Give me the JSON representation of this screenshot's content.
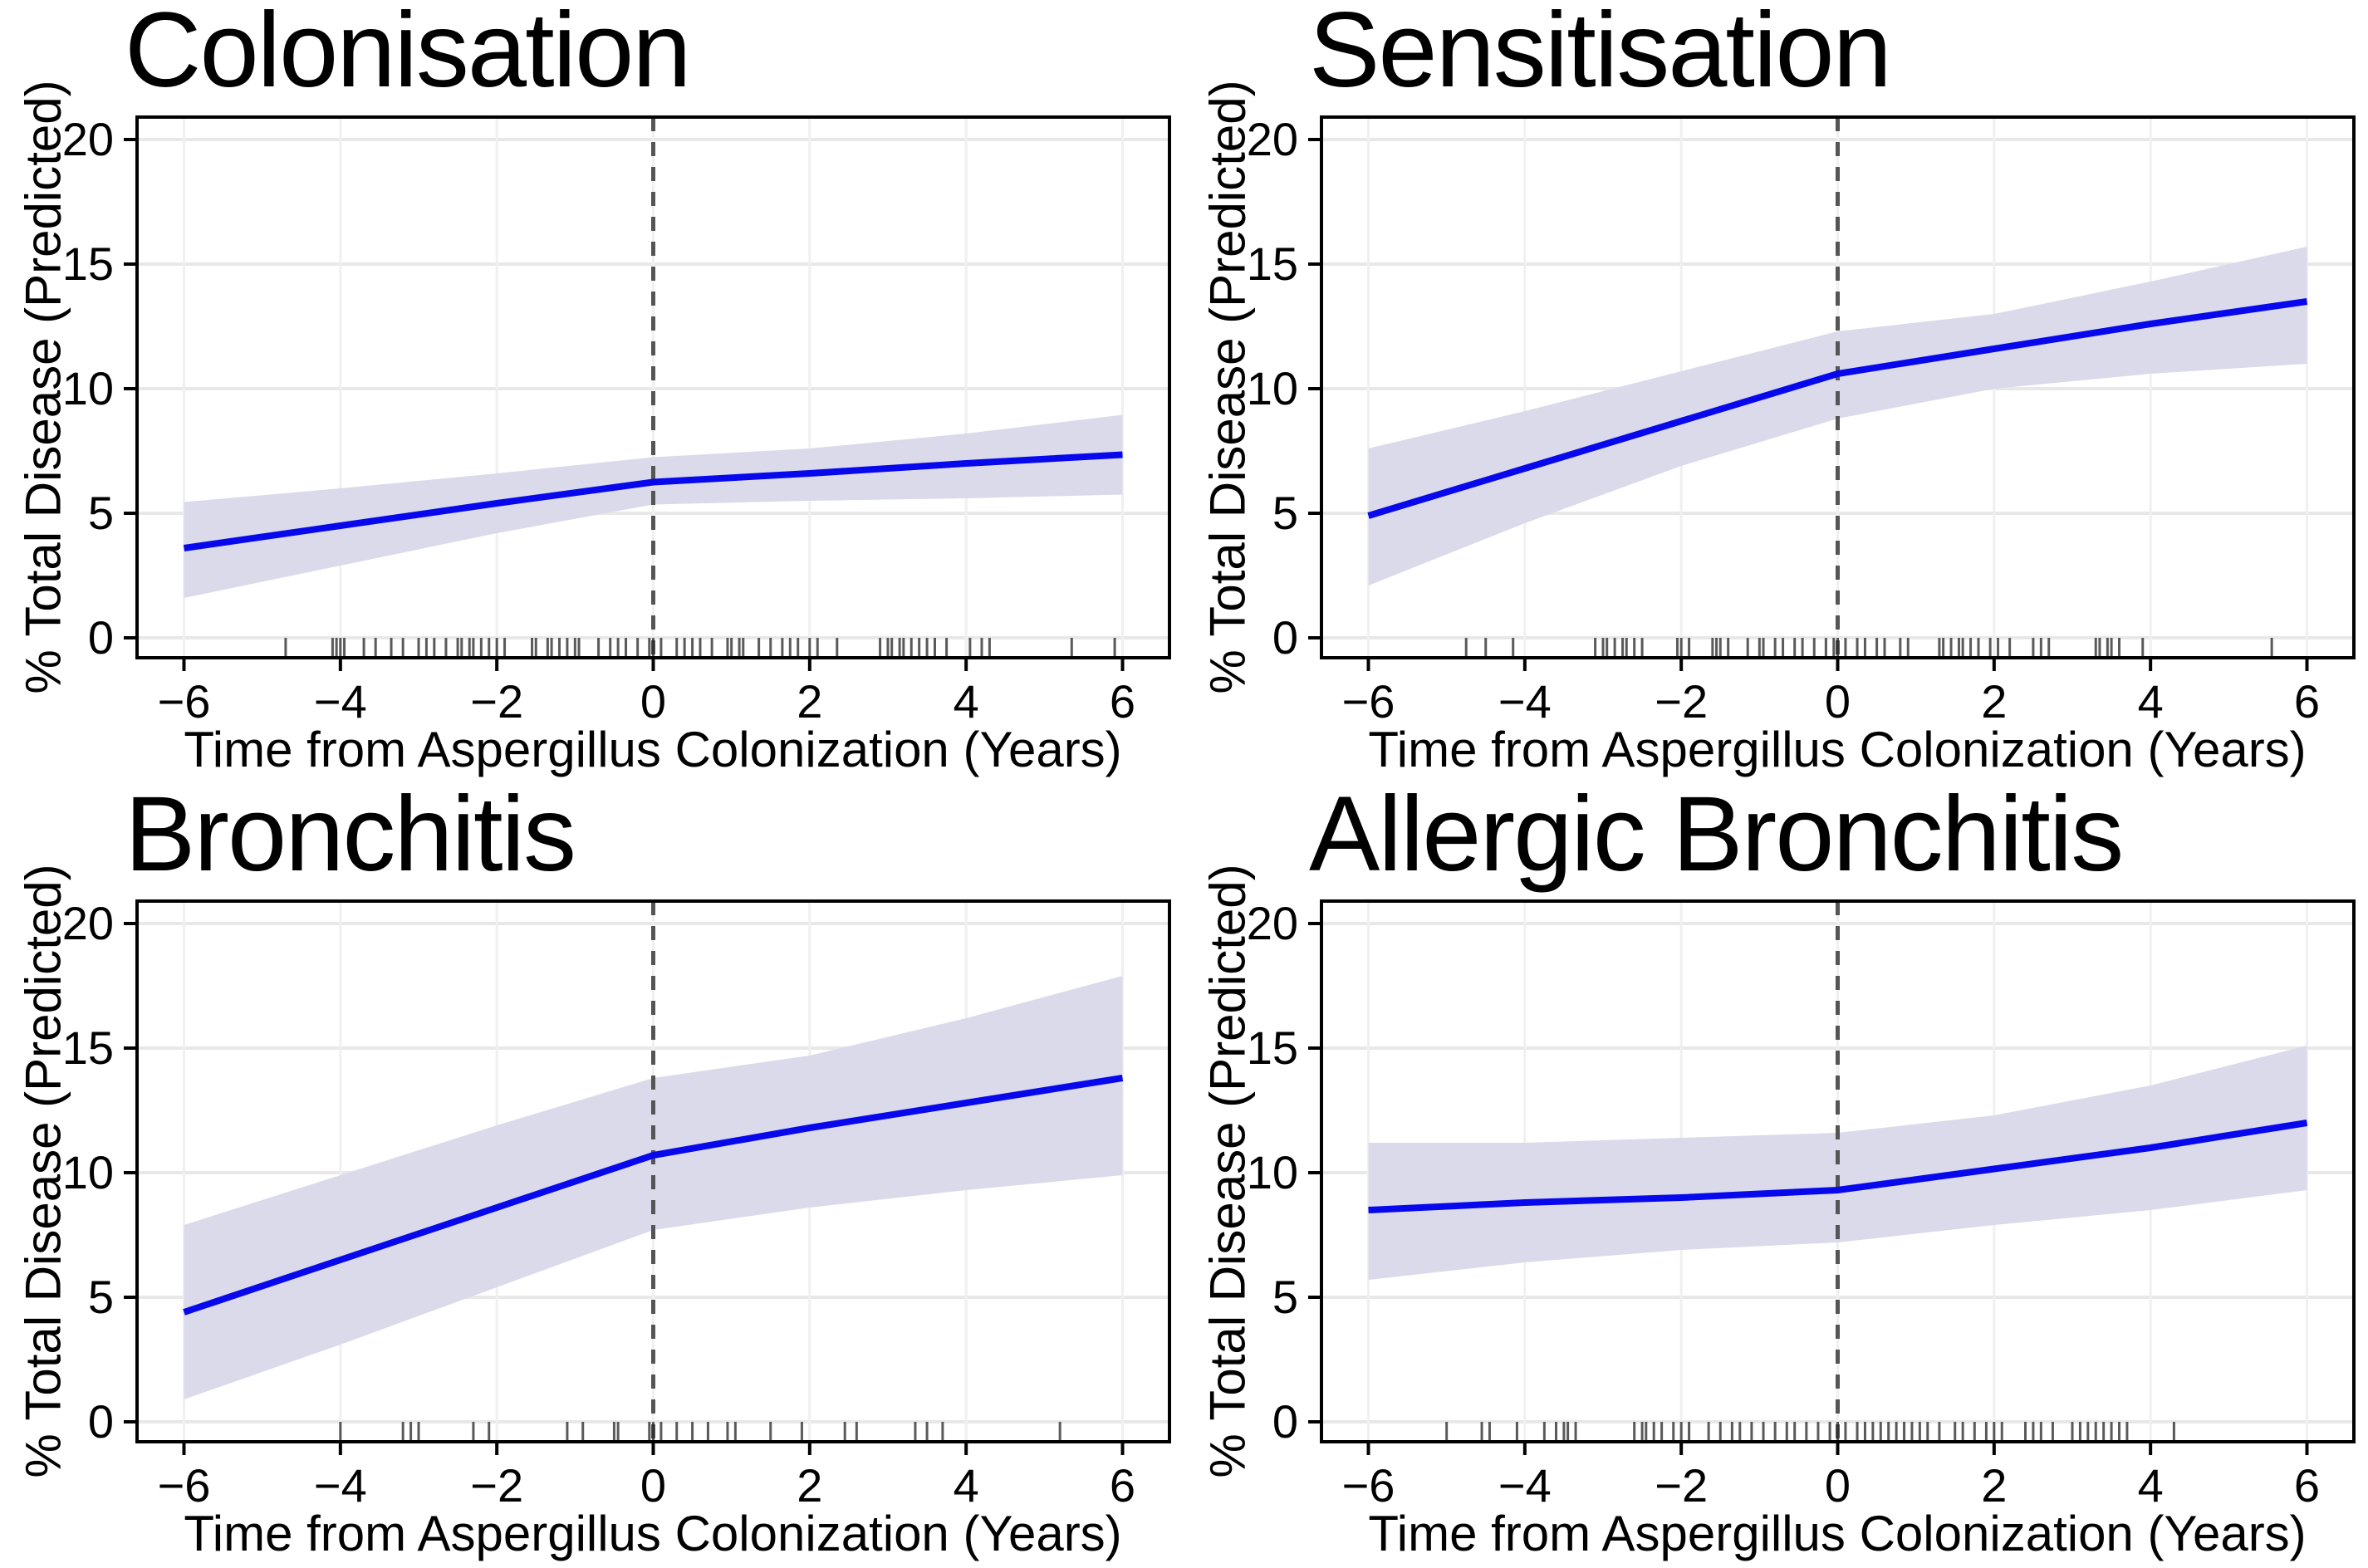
{
  "page": {
    "type": "faceted-regression-figure",
    "facets": 4
  },
  "style": {
    "line_color": "#0808EC",
    "band_color": "#DADAEB",
    "grid_h_color": "#E8E8E8",
    "grid_v_color": "#F0F0F0",
    "vline_color": "#555555",
    "rug_color": "#2B2B2B",
    "border_color": "#000000",
    "text_color": "#000000"
  },
  "chart_data": [
    {
      "type": "line",
      "title": "Colonisation",
      "xlabel": "Time from Aspergillus Colonization (Years)",
      "ylabel": "% Total Disease (Predicted)",
      "x": [
        -6,
        -4,
        -2,
        0,
        2,
        4,
        6
      ],
      "series": [
        {
          "name": "predicted",
          "values": [
            3.6,
            4.5,
            5.4,
            6.25,
            6.6,
            7.0,
            7.35
          ]
        },
        {
          "name": "ci_upper",
          "values": [
            5.45,
            6.0,
            6.6,
            7.25,
            7.6,
            8.2,
            8.95
          ]
        },
        {
          "name": "ci_lower",
          "values": [
            1.6,
            2.9,
            4.2,
            5.35,
            5.5,
            5.6,
            5.75
          ]
        }
      ],
      "rug_x": [
        -4.7,
        -4.1,
        -4.05,
        -4.0,
        -3.95,
        -3.7,
        -3.55,
        -3.35,
        -3.2,
        -3.0,
        -2.9,
        -2.8,
        -2.65,
        -2.5,
        -2.45,
        -2.35,
        -2.3,
        -2.2,
        -2.1,
        -2.0,
        -1.9,
        -1.55,
        -1.5,
        -1.35,
        -1.3,
        -1.2,
        -1.1,
        -1.0,
        -0.95,
        -0.7,
        -0.55,
        -0.45,
        -0.35,
        -0.2,
        -0.05,
        0.0,
        0.1,
        0.3,
        0.4,
        0.5,
        0.6,
        0.75,
        0.95,
        1.0,
        1.1,
        1.15,
        1.35,
        1.5,
        1.65,
        1.75,
        1.85,
        2.0,
        2.1,
        2.35,
        2.9,
        3.0,
        3.05,
        3.15,
        3.2,
        3.3,
        3.4,
        3.5,
        3.6,
        3.75,
        4.05,
        4.2,
        4.3,
        5.35,
        5.9
      ],
      "xticks": [
        -6,
        -4,
        -2,
        0,
        2,
        4,
        6
      ],
      "yticks": [
        0,
        5,
        10,
        15,
        20
      ],
      "xlim": [
        -6.6,
        6.6
      ],
      "ylim": [
        -0.8,
        20.9
      ],
      "vline_x": 0,
      "grid": true,
      "legend": "none"
    },
    {
      "type": "line",
      "title": "Sensitisation",
      "xlabel": "Time from Aspergillus Colonization (Years)",
      "ylabel": "% Total Disease (Predicted)",
      "x": [
        -6,
        -4,
        -2,
        0,
        2,
        4,
        6
      ],
      "series": [
        {
          "name": "predicted",
          "values": [
            4.9,
            6.8,
            8.7,
            10.6,
            11.6,
            12.6,
            13.5
          ]
        },
        {
          "name": "ci_upper",
          "values": [
            7.6,
            9.1,
            10.7,
            12.3,
            13.0,
            14.3,
            15.7
          ]
        },
        {
          "name": "ci_lower",
          "values": [
            2.1,
            4.6,
            6.9,
            8.8,
            10.0,
            10.6,
            11.0
          ]
        }
      ],
      "rug_x": [
        -4.75,
        -4.5,
        -4.15,
        -3.1,
        -3.0,
        -2.95,
        -2.85,
        -2.75,
        -2.7,
        -2.6,
        -2.5,
        -2.05,
        -2.0,
        -1.9,
        -1.6,
        -1.55,
        -1.5,
        -1.4,
        -1.15,
        -1.0,
        -0.95,
        -0.8,
        -0.7,
        -0.55,
        -0.45,
        -0.3,
        -0.15,
        -0.05,
        0.0,
        0.1,
        0.25,
        0.35,
        0.5,
        0.6,
        0.8,
        0.9,
        1.3,
        1.35,
        1.45,
        1.55,
        1.6,
        1.7,
        1.8,
        1.95,
        2.05,
        2.2,
        2.5,
        2.6,
        2.7,
        3.3,
        3.35,
        3.45,
        3.5,
        3.6,
        3.9,
        5.55
      ],
      "xticks": [
        -6,
        -4,
        -2,
        0,
        2,
        4,
        6
      ],
      "yticks": [
        0,
        5,
        10,
        15,
        20
      ],
      "xlim": [
        -6.6,
        6.6
      ],
      "ylim": [
        -0.8,
        20.9
      ],
      "vline_x": 0,
      "grid": true,
      "legend": "none"
    },
    {
      "type": "line",
      "title": "Bronchitis",
      "xlabel": "Time from Aspergillus Colonization (Years)",
      "ylabel": "% Total Disease (Predicted)",
      "x": [
        -6,
        -4,
        -2,
        0,
        2,
        4,
        6
      ],
      "series": [
        {
          "name": "predicted",
          "values": [
            4.4,
            6.5,
            8.6,
            10.7,
            11.8,
            12.8,
            13.8
          ]
        },
        {
          "name": "ci_upper",
          "values": [
            7.9,
            9.9,
            11.9,
            13.8,
            14.7,
            16.2,
            17.9
          ]
        },
        {
          "name": "ci_lower",
          "values": [
            0.9,
            3.1,
            5.4,
            7.7,
            8.6,
            9.3,
            9.9
          ]
        }
      ],
      "rug_x": [
        -4.0,
        -3.2,
        -3.1,
        -3.0,
        -2.3,
        -2.1,
        -1.1,
        -0.9,
        -0.5,
        -0.45,
        -0.05,
        0.0,
        0.1,
        0.3,
        0.5,
        0.7,
        0.95,
        1.05,
        1.5,
        1.9,
        2.45,
        2.6,
        3.35,
        3.5,
        3.7,
        5.2
      ],
      "xticks": [
        -6,
        -4,
        -2,
        0,
        2,
        4,
        6
      ],
      "yticks": [
        0,
        5,
        10,
        15,
        20
      ],
      "xlim": [
        -6.6,
        6.6
      ],
      "ylim": [
        -0.8,
        20.9
      ],
      "vline_x": 0,
      "grid": true,
      "legend": "none"
    },
    {
      "type": "line",
      "title": "Allergic Bronchitis",
      "xlabel": "Time from Aspergillus Colonization (Years)",
      "ylabel": "% Total Disease (Predicted)",
      "x": [
        -6,
        -4,
        -2,
        0,
        2,
        4,
        6
      ],
      "series": [
        {
          "name": "predicted",
          "values": [
            8.5,
            8.8,
            9.0,
            9.3,
            10.15,
            11.0,
            12.0
          ]
        },
        {
          "name": "ci_upper",
          "values": [
            11.2,
            11.2,
            11.4,
            11.6,
            12.3,
            13.5,
            15.1
          ]
        },
        {
          "name": "ci_lower",
          "values": [
            5.7,
            6.4,
            6.9,
            7.2,
            7.9,
            8.5,
            9.3
          ]
        }
      ],
      "rug_x": [
        -5.0,
        -4.55,
        -4.45,
        -4.1,
        -3.75,
        -3.6,
        -3.5,
        -3.45,
        -3.35,
        -2.6,
        -2.5,
        -2.45,
        -2.35,
        -2.25,
        -2.1,
        -2.0,
        -1.9,
        -1.65,
        -1.5,
        -1.35,
        -1.25,
        -1.1,
        -0.95,
        -0.8,
        -0.65,
        -0.55,
        -0.4,
        -0.25,
        -0.1,
        0.0,
        0.1,
        0.25,
        0.35,
        0.45,
        0.55,
        0.65,
        0.75,
        0.85,
        0.95,
        1.05,
        1.15,
        1.3,
        1.5,
        1.6,
        1.75,
        1.9,
        2.0,
        2.1,
        2.4,
        2.5,
        2.6,
        2.75,
        3.0,
        3.1,
        3.2,
        3.3,
        3.4,
        3.5,
        3.6,
        3.7,
        4.3
      ],
      "xticks": [
        -6,
        -4,
        -2,
        0,
        2,
        4,
        6
      ],
      "yticks": [
        0,
        5,
        10,
        15,
        20
      ],
      "xlim": [
        -6.6,
        6.6
      ],
      "ylim": [
        -0.8,
        20.9
      ],
      "vline_x": 0,
      "grid": true,
      "legend": "none"
    }
  ]
}
